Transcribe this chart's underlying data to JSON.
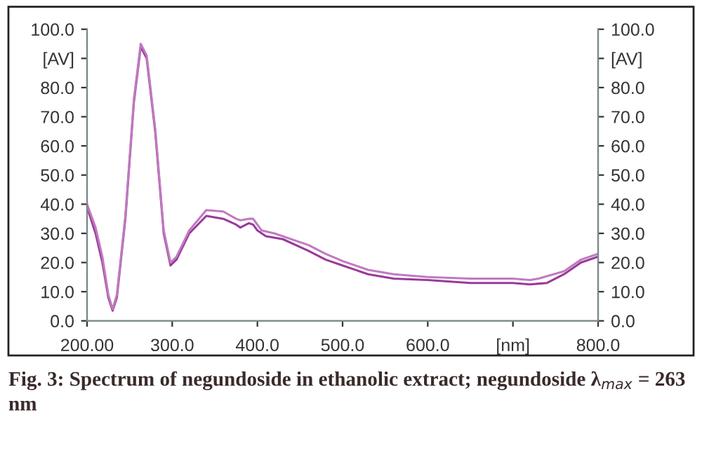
{
  "chart_data": {
    "type": "line",
    "xlim": [
      200,
      800
    ],
    "ylim": [
      0,
      100
    ],
    "y2lim": [
      0,
      100
    ],
    "xticks": [
      {
        "value": 200,
        "label": "200.00"
      },
      {
        "value": 300,
        "label": "300.0"
      },
      {
        "value": 400,
        "label": "400.0"
      },
      {
        "value": 500,
        "label": "500.0"
      },
      {
        "value": 600,
        "label": "600.0"
      },
      {
        "value": 700,
        "label": "[nm]"
      },
      {
        "value": 800,
        "label": "800.0"
      }
    ],
    "yticks": [
      {
        "value": 0,
        "label": "0.0"
      },
      {
        "value": 10,
        "label": "10.0"
      },
      {
        "value": 20,
        "label": "20.0"
      },
      {
        "value": 30,
        "label": "30.0"
      },
      {
        "value": 40,
        "label": "40.0"
      },
      {
        "value": 50,
        "label": "50.0"
      },
      {
        "value": 60,
        "label": "60.0"
      },
      {
        "value": 70,
        "label": "70.0"
      },
      {
        "value": 80,
        "label": "80.0"
      },
      {
        "value": 90,
        "label": "[AV]"
      },
      {
        "value": 100,
        "label": "100.0"
      }
    ],
    "y2ticks": [
      {
        "value": 0,
        "label": "0.0"
      },
      {
        "value": 10,
        "label": "10.0"
      },
      {
        "value": 20,
        "label": "20.0"
      },
      {
        "value": 30,
        "label": "30.0"
      },
      {
        "value": 40,
        "label": "40.0"
      },
      {
        "value": 50,
        "label": "50.0"
      },
      {
        "value": 60,
        "label": "60.0"
      },
      {
        "value": 70,
        "label": "70.0"
      },
      {
        "value": 80,
        "label": "80.0"
      },
      {
        "value": 90,
        "label": "[AV]"
      },
      {
        "value": 100,
        "label": "100.0"
      }
    ],
    "grid": false,
    "line_style": "solid",
    "marker": "none",
    "annotations": [
      "Fig. 3: Spectrum of negundoside in ethanolic extract; negundoside λ$_{max}$ = 263 nm"
    ],
    "series": [
      {
        "color": "#9a3a9a",
        "x": [
          200,
          210,
          218,
          225,
          230,
          235,
          245,
          255,
          263,
          270,
          280,
          290,
          298,
          305,
          320,
          340,
          360,
          375,
          380,
          390,
          395,
          400,
          410,
          430,
          460,
          480,
          500,
          530,
          560,
          600,
          650,
          700,
          720,
          740,
          760,
          780,
          800
        ],
        "values": [
          39,
          30,
          20,
          8,
          3.5,
          8,
          35,
          75,
          94,
          90,
          65,
          30,
          19,
          21,
          30,
          36,
          35,
          33,
          32,
          33.5,
          33,
          31,
          29,
          28,
          24,
          21,
          19,
          16,
          14.5,
          14,
          13,
          13,
          12.5,
          13,
          16,
          20,
          22
        ]
      },
      {
        "color": "#c07ac0",
        "x": [
          200,
          210,
          218,
          225,
          230,
          235,
          245,
          255,
          263,
          270,
          280,
          290,
          298,
          305,
          320,
          340,
          360,
          375,
          380,
          390,
          395,
          405,
          420,
          460,
          480,
          500,
          530,
          560,
          600,
          650,
          700,
          720,
          730,
          760,
          780,
          800
        ],
        "values": [
          40,
          32,
          22,
          9,
          4,
          9,
          36,
          76,
          95,
          91,
          66,
          31,
          20,
          22,
          31,
          38,
          37.5,
          35,
          34.5,
          35,
          35,
          31,
          30,
          26,
          23,
          20.5,
          17.5,
          16,
          15,
          14.5,
          14.5,
          14,
          14.5,
          17,
          21,
          23
        ]
      }
    ]
  }
}
